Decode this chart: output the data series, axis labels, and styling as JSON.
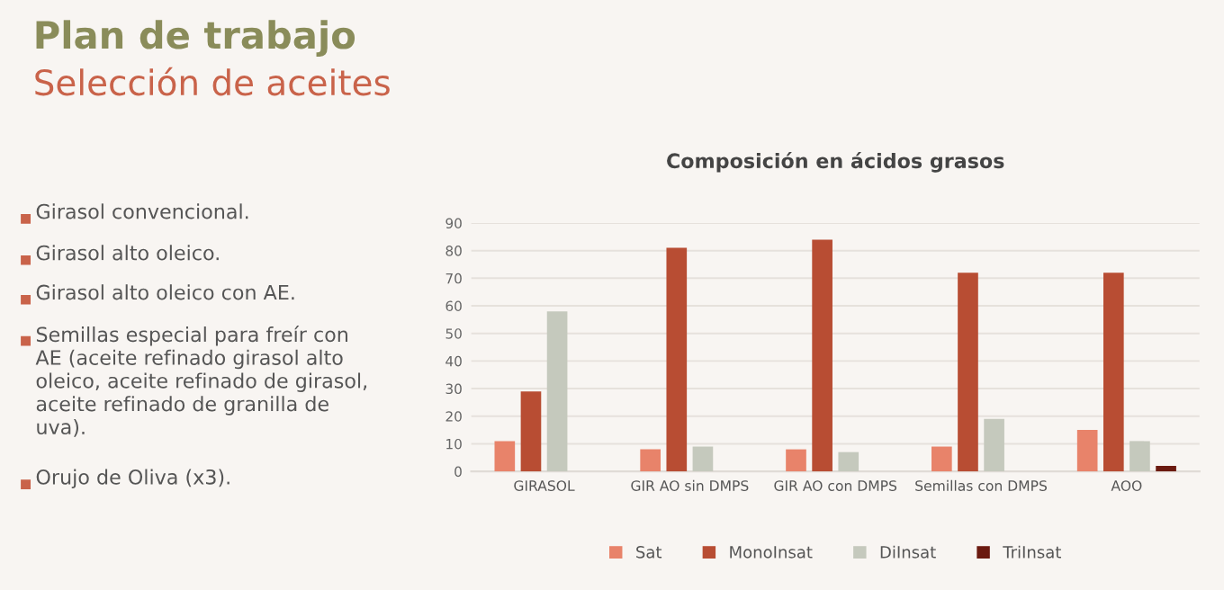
{
  "chart_data": {
    "type": "bar",
    "title": "Composición en ácidos grasos",
    "categories": [
      "GIRASOL",
      "GIR AO sin DMPS",
      "GIR AO con DMPS",
      "Semillas con DMPS",
      "AOO"
    ],
    "series": [
      {
        "name": "Sat",
        "color": "#e8836a",
        "values": [
          11,
          8,
          8,
          9,
          15
        ]
      },
      {
        "name": "MonoInsat",
        "color": "#b84d33",
        "values": [
          29,
          81,
          84,
          72,
          72
        ]
      },
      {
        "name": "DiInsat",
        "color": "#c5c9bd",
        "values": [
          58,
          9,
          7,
          19,
          11
        ]
      },
      {
        "name": "TriInsat",
        "color": "#6b1a10",
        "values": [
          null,
          null,
          null,
          null,
          2
        ]
      }
    ],
    "ylim": [
      0,
      90
    ],
    "yticks": [
      0,
      10,
      20,
      30,
      40,
      50,
      60,
      70,
      80,
      90
    ],
    "grid": "y",
    "legend": "bottom",
    "annotations": [
      "Plan de trabajo",
      "Selección de aceites",
      "Girasol convencional.",
      "Girasol alto oleico.",
      "Girasol alto oleico con AE.",
      "Semillas especial para freír con\nAE (aceite refinado girasol alto\noleico, aceite refinado de girasol,\naceite refinado de granilla de\nuva).",
      "Orujo de Oliva (x3)."
    ]
  }
}
